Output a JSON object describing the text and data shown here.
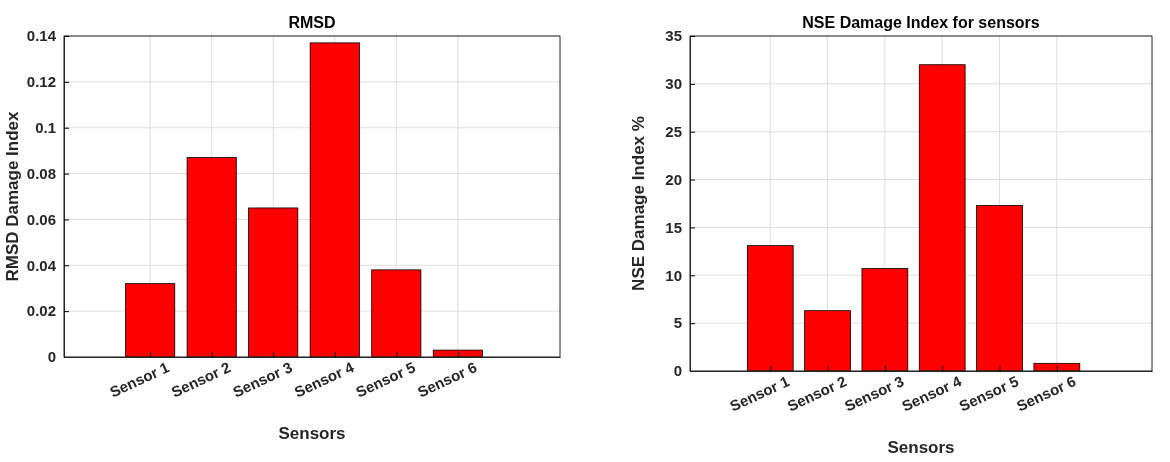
{
  "chart_data": [
    {
      "type": "bar",
      "title": "RMSD",
      "xlabel": "Sensors",
      "ylabel": "RMSD Damage Index",
      "categories": [
        "Sensor 1",
        "Sensor 2",
        "Sensor 3",
        "Sensor 4",
        "Sensor 5",
        "Sensor 6"
      ],
      "values": [
        0.032,
        0.087,
        0.065,
        0.137,
        0.038,
        0.003
      ],
      "color": "#ff0000",
      "ylim": [
        0,
        0.14
      ],
      "yticks": [
        0,
        0.02,
        0.04,
        0.06,
        0.08,
        0.1,
        0.12,
        0.14
      ],
      "grid": true
    },
    {
      "type": "bar",
      "title": "NSE Damage Index for sensors",
      "xlabel": "Sensors",
      "ylabel": "NSE Damage Index %",
      "categories": [
        "Sensor 1",
        "Sensor 2",
        "Sensor 3",
        "Sensor 4",
        "Sensor 5",
        "Sensor 6"
      ],
      "values": [
        13.1,
        6.3,
        10.7,
        32,
        17.3,
        0.8
      ],
      "color": "#ff0000",
      "ylim": [
        0,
        35
      ],
      "yticks": [
        0,
        5,
        10,
        15,
        20,
        25,
        30,
        35
      ],
      "grid": true
    }
  ]
}
